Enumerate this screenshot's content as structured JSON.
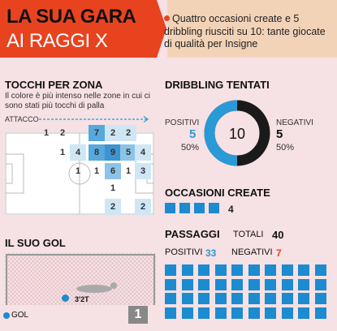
{
  "header": {
    "title_line1": "LA SUA GARA",
    "title_line2": "AI RAGGI X",
    "caption": "Quattro occasioni create e 5 dribbling riusciti su 10: tante giocate di qualità per Insigne"
  },
  "touches": {
    "title": "TOCCHI PER ZONA",
    "description": "Il colore è più intenso nelle zone in cui ci sono stati più tocchi di palla",
    "attack_label": "ATTACCO",
    "cells": [
      {
        "v": "1",
        "c": 2,
        "r": 0,
        "shade": 0
      },
      {
        "v": "2",
        "c": 3,
        "r": 0,
        "shade": 0
      },
      {
        "v": "7",
        "c": 5,
        "r": 0,
        "shade": 3
      },
      {
        "v": "2",
        "c": 6,
        "r": 0,
        "shade": 1
      },
      {
        "v": "2",
        "c": 7,
        "r": 0,
        "shade": 1
      },
      {
        "v": "1",
        "c": 3,
        "r": 1,
        "shade": 0
      },
      {
        "v": "4",
        "c": 4,
        "r": 1,
        "shade": 1
      },
      {
        "v": "8",
        "c": 5,
        "r": 1,
        "shade": 3
      },
      {
        "v": "9",
        "c": 6,
        "r": 1,
        "shade": 4
      },
      {
        "v": "5",
        "c": 7,
        "r": 1,
        "shade": 2
      },
      {
        "v": "4",
        "c": 8,
        "r": 1,
        "shade": 1
      },
      {
        "v": "1",
        "c": 4,
        "r": 2,
        "shade": 0
      },
      {
        "v": "1",
        "c": 5,
        "r": 2,
        "shade": 0
      },
      {
        "v": "6",
        "c": 6,
        "r": 2,
        "shade": 2
      },
      {
        "v": "1",
        "c": 7,
        "r": 2,
        "shade": 0
      },
      {
        "v": "3",
        "c": 8,
        "r": 2,
        "shade": 1
      },
      {
        "v": "1",
        "c": 6,
        "r": 3,
        "shade": 0
      },
      {
        "v": "2",
        "c": 6,
        "r": 4,
        "shade": 1
      },
      {
        "v": "2",
        "c": 8,
        "r": 4,
        "shade": 1
      }
    ]
  },
  "dribbling": {
    "title": "DRIBBLING TENTATI",
    "total": "10",
    "positive_label": "POSITIVI",
    "positive_value": "5",
    "positive_pct": "50%",
    "negative_label": "NEGATIVI",
    "negative_value": "5",
    "negative_pct": "50%",
    "positive_color": "#2a9ad6",
    "negative_color": "#1a1a1a"
  },
  "chances": {
    "title": "OCCASIONI CREATE",
    "count": 4,
    "value": "4"
  },
  "passes": {
    "title": "PASSAGGI",
    "total_label": "TOTALI",
    "total_value": "40",
    "positive_label": "POSITIVI",
    "positive_value": "33",
    "negative_label": "NEGATIVI",
    "negative_value": "7",
    "grid_count": 40
  },
  "goal": {
    "title": "IL SUO GOL",
    "minute": "3'2T",
    "legend_label": "GOL",
    "count": "1"
  }
}
